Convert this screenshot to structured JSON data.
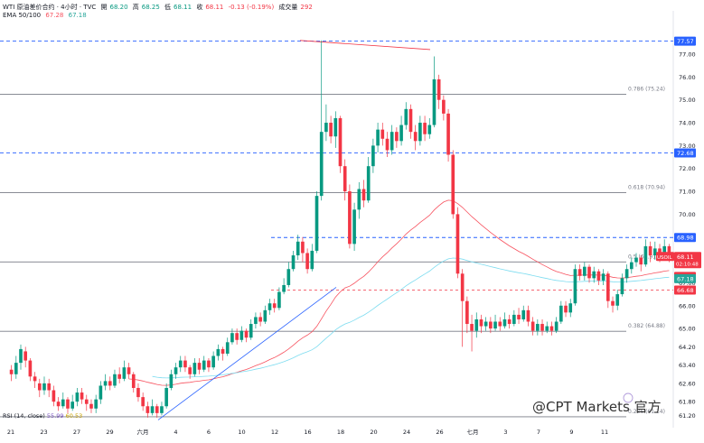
{
  "header": {
    "symbol": "WTI 原油差价合约 · 4小时 · TVC",
    "open_label": "開",
    "open": "68.20",
    "high_label": "高",
    "high": "68.25",
    "low_label": "低",
    "low": "68.11",
    "close_label": "收",
    "close": "68.11",
    "change": "-0.13 (-0.19%)",
    "volume_label": "成交量",
    "volume": "292",
    "ema_label": "EMA 50/100",
    "ema50": "67.28",
    "ema100": "67.18",
    "rsi_label": "RSI (14, close)",
    "rsi_a": "55.99",
    "rsi_b": "60.53"
  },
  "watermark": "@CPT Markets 官方",
  "colors": {
    "up": "#089981",
    "down": "#f23645",
    "ema50": "#f7525f",
    "ema100": "#7ddcf0",
    "trend": "#2962ff",
    "dash": "#2962ff",
    "fib": "#787b86"
  },
  "chart_data": {
    "type": "candlestick",
    "ylim": [
      60.9,
      78.5
    ],
    "yticks": [
      "77.00",
      "76.00",
      "75.00",
      "74.00",
      "73.00",
      "72.00",
      "71.00",
      "70.00",
      "69.00",
      "68.00",
      "67.00",
      "66.00",
      "65.00",
      "64.20",
      "63.40",
      "62.60",
      "61.80",
      "61.20"
    ],
    "ytick_values": [
      77,
      76,
      75,
      74,
      73,
      72,
      71,
      70,
      69,
      68,
      67,
      66,
      65,
      64.2,
      63.4,
      62.6,
      61.8,
      61.2
    ],
    "xticks": [
      "21",
      "23",
      "27",
      "29",
      "六月",
      "4",
      "6",
      "10",
      "12",
      "16",
      "18",
      "20",
      "24",
      "26",
      "七月",
      "3",
      "7",
      "9",
      "11"
    ],
    "fib_levels": [
      {
        "label": "0.786 (75.24)",
        "value": 75.24
      },
      {
        "label": "0.618 (70.94)",
        "value": 70.94
      },
      {
        "label": "0.5 (67.91)",
        "value": 67.91
      },
      {
        "label": "0.382 (64.88)",
        "value": 64.88
      },
      {
        "label": "0.236 (61.14)",
        "value": 61.14
      }
    ],
    "dashed_levels": [
      {
        "value": 77.57,
        "label": "77.57"
      },
      {
        "value": 72.68,
        "label": "72.68"
      },
      {
        "value": 68.98,
        "label": "68.98"
      }
    ],
    "price_badges": [
      {
        "label": "USOIL",
        "value": "68.11",
        "sub": "02:10:48",
        "color": "#f23645"
      },
      {
        "label": "",
        "value": "67.28",
        "color": "#f23645"
      },
      {
        "label": "",
        "value": "67.18",
        "color": "#26a69a"
      },
      {
        "label": "",
        "value": "66.68",
        "color": "#f23645"
      }
    ],
    "red_dashed": 66.68,
    "candles": [
      [
        63.2,
        63.0,
        63.4,
        62.7
      ],
      [
        63.0,
        63.5,
        63.8,
        62.8
      ],
      [
        63.5,
        64.1,
        64.3,
        63.2
      ],
      [
        64.0,
        63.6,
        64.2,
        63.3
      ],
      [
        63.6,
        62.9,
        63.7,
        62.7
      ],
      [
        62.9,
        62.7,
        63.1,
        62.4
      ],
      [
        62.6,
        62.3,
        62.8,
        62.0
      ],
      [
        62.3,
        62.6,
        62.9,
        62.1
      ],
      [
        62.6,
        62.3,
        62.8,
        62.0
      ],
      [
        62.3,
        61.8,
        62.5,
        61.6
      ],
      [
        61.8,
        61.6,
        62.0,
        61.4
      ],
      [
        61.6,
        61.9,
        62.2,
        61.5
      ],
      [
        61.9,
        61.5,
        62.0,
        61.3
      ],
      [
        61.5,
        61.8,
        62.1,
        61.4
      ],
      [
        61.8,
        62.2,
        62.4,
        61.6
      ],
      [
        62.2,
        61.9,
        62.4,
        61.7
      ],
      [
        61.9,
        61.7,
        62.1,
        61.4
      ],
      [
        61.7,
        61.5,
        61.9,
        61.3
      ],
      [
        61.5,
        61.9,
        62.1,
        61.3
      ],
      [
        61.9,
        62.5,
        62.7,
        61.7
      ],
      [
        62.5,
        62.7,
        63.0,
        62.3
      ],
      [
        62.7,
        62.5,
        62.9,
        62.3
      ],
      [
        62.5,
        63.0,
        63.2,
        62.4
      ],
      [
        63.0,
        62.8,
        63.3,
        62.6
      ],
      [
        62.8,
        63.3,
        63.6,
        62.7
      ],
      [
        63.3,
        63.0,
        63.5,
        62.8
      ],
      [
        63.0,
        62.4,
        63.1,
        62.2
      ],
      [
        62.4,
        62.0,
        62.6,
        61.8
      ],
      [
        62.0,
        61.6,
        62.2,
        61.4
      ],
      [
        61.6,
        61.3,
        61.8,
        61.1
      ],
      [
        61.3,
        61.6,
        61.9,
        61.2
      ],
      [
        61.6,
        61.3,
        61.7,
        61.1
      ],
      [
        61.3,
        61.6,
        61.8,
        61.2
      ],
      [
        61.6,
        62.4,
        62.6,
        61.5
      ],
      [
        62.4,
        63.0,
        63.2,
        62.3
      ],
      [
        63.0,
        63.3,
        63.5,
        62.8
      ],
      [
        63.3,
        63.6,
        63.8,
        63.1
      ],
      [
        63.6,
        63.3,
        63.8,
        63.1
      ],
      [
        63.3,
        63.0,
        63.4,
        62.8
      ],
      [
        63.0,
        63.5,
        63.7,
        62.9
      ],
      [
        63.5,
        63.2,
        63.7,
        63.0
      ],
      [
        63.2,
        63.6,
        63.8,
        63.1
      ],
      [
        63.6,
        63.3,
        63.7,
        63.1
      ],
      [
        63.3,
        63.8,
        64.0,
        63.2
      ],
      [
        63.8,
        64.1,
        64.3,
        63.6
      ],
      [
        64.1,
        63.9,
        64.2,
        63.6
      ],
      [
        63.9,
        64.4,
        64.6,
        63.8
      ],
      [
        64.4,
        64.8,
        65.0,
        64.3
      ],
      [
        64.8,
        64.5,
        65.0,
        64.3
      ],
      [
        64.5,
        64.9,
        65.1,
        64.4
      ],
      [
        64.9,
        64.6,
        65.0,
        64.4
      ],
      [
        64.6,
        65.2,
        65.4,
        64.5
      ],
      [
        65.2,
        65.5,
        65.7,
        65.0
      ],
      [
        65.5,
        65.3,
        65.7,
        65.1
      ],
      [
        65.3,
        65.8,
        66.0,
        65.2
      ],
      [
        65.8,
        66.1,
        66.3,
        65.6
      ],
      [
        66.1,
        65.9,
        66.3,
        65.7
      ],
      [
        65.9,
        66.6,
        66.8,
        65.8
      ],
      [
        66.6,
        66.9,
        67.2,
        66.5
      ],
      [
        66.9,
        67.6,
        67.9,
        66.8
      ],
      [
        67.6,
        68.2,
        68.4,
        67.5
      ],
      [
        68.2,
        68.8,
        69.1,
        68.0
      ],
      [
        68.8,
        68.3,
        69.0,
        67.9
      ],
      [
        68.3,
        67.6,
        68.5,
        67.4
      ],
      [
        67.6,
        68.4,
        68.7,
        67.5
      ],
      [
        68.4,
        70.8,
        71.0,
        68.3
      ],
      [
        70.8,
        73.6,
        77.6,
        70.6
      ],
      [
        73.6,
        74.0,
        74.8,
        73.2
      ],
      [
        74.0,
        73.4,
        74.3,
        73.1
      ],
      [
        73.4,
        74.2,
        74.5,
        72.9
      ],
      [
        74.2,
        72.1,
        74.3,
        71.8
      ],
      [
        72.1,
        71.0,
        72.4,
        70.6
      ],
      [
        71.0,
        68.7,
        71.3,
        68.5
      ],
      [
        68.7,
        70.2,
        70.5,
        68.4
      ],
      [
        70.2,
        71.1,
        71.4,
        69.8
      ],
      [
        71.1,
        70.6,
        71.5,
        70.3
      ],
      [
        70.6,
        72.1,
        72.5,
        70.5
      ],
      [
        72.1,
        73.0,
        73.3,
        71.8
      ],
      [
        73.0,
        73.7,
        74.0,
        72.7
      ],
      [
        73.7,
        73.3,
        74.0,
        73.0
      ],
      [
        73.3,
        72.8,
        73.6,
        72.5
      ],
      [
        72.8,
        73.6,
        73.9,
        72.6
      ],
      [
        73.6,
        73.2,
        73.8,
        72.9
      ],
      [
        73.2,
        73.9,
        74.3,
        73.0
      ],
      [
        73.9,
        74.6,
        74.9,
        73.7
      ],
      [
        74.6,
        73.6,
        74.8,
        73.3
      ],
      [
        73.6,
        73.2,
        73.9,
        72.8
      ],
      [
        73.2,
        74.0,
        74.3,
        73.0
      ],
      [
        74.0,
        73.5,
        74.3,
        73.2
      ],
      [
        73.5,
        73.9,
        74.2,
        73.3
      ],
      [
        73.9,
        75.9,
        76.9,
        73.8
      ],
      [
        75.9,
        75.0,
        76.1,
        74.6
      ],
      [
        75.0,
        74.4,
        75.2,
        74.1
      ],
      [
        74.4,
        72.6,
        74.6,
        72.3
      ],
      [
        72.6,
        70.0,
        72.8,
        69.8
      ],
      [
        70.0,
        67.4,
        70.3,
        67.2
      ],
      [
        67.4,
        66.2,
        67.6,
        64.2
      ],
      [
        66.2,
        65.2,
        66.4,
        64.8
      ],
      [
        65.2,
        64.9,
        65.6,
        64.0
      ],
      [
        64.9,
        65.4,
        65.7,
        64.6
      ],
      [
        65.4,
        65.1,
        65.6,
        64.8
      ],
      [
        65.1,
        65.3,
        65.5,
        64.9
      ],
      [
        65.3,
        65.0,
        65.5,
        64.8
      ],
      [
        65.0,
        65.3,
        65.6,
        64.9
      ],
      [
        65.3,
        65.1,
        65.5,
        64.9
      ],
      [
        65.1,
        65.4,
        65.7,
        65.0
      ],
      [
        65.4,
        65.2,
        65.6,
        65.0
      ],
      [
        65.2,
        65.6,
        65.8,
        65.1
      ],
      [
        65.6,
        65.4,
        65.9,
        65.2
      ],
      [
        65.4,
        65.8,
        66.0,
        65.3
      ],
      [
        65.8,
        65.3,
        66.0,
        65.1
      ],
      [
        65.3,
        64.9,
        65.5,
        64.7
      ],
      [
        64.9,
        65.2,
        65.4,
        64.7
      ],
      [
        65.2,
        64.9,
        65.4,
        64.7
      ],
      [
        64.9,
        65.1,
        65.3,
        64.8
      ],
      [
        65.1,
        64.9,
        65.3,
        64.7
      ],
      [
        64.9,
        65.3,
        65.5,
        64.8
      ],
      [
        65.3,
        66.0,
        66.2,
        65.2
      ],
      [
        66.0,
        65.7,
        66.2,
        65.5
      ],
      [
        65.7,
        66.1,
        66.3,
        65.5
      ],
      [
        66.1,
        67.6,
        67.8,
        66.0
      ],
      [
        67.6,
        67.3,
        67.8,
        67.1
      ],
      [
        67.3,
        67.7,
        67.9,
        67.1
      ],
      [
        67.7,
        67.2,
        67.8,
        67.0
      ],
      [
        67.2,
        67.5,
        67.7,
        67.0
      ],
      [
        67.5,
        67.1,
        67.6,
        66.9
      ],
      [
        67.1,
        67.4,
        67.6,
        66.9
      ],
      [
        67.4,
        66.2,
        67.5,
        65.9
      ],
      [
        66.2,
        66.0,
        66.4,
        65.7
      ],
      [
        66.0,
        66.5,
        66.7,
        65.8
      ],
      [
        66.5,
        67.2,
        67.4,
        66.4
      ],
      [
        67.2,
        67.6,
        67.8,
        67.0
      ],
      [
        67.6,
        67.9,
        68.1,
        67.4
      ],
      [
        67.9,
        68.1,
        68.3,
        67.7
      ],
      [
        68.1,
        67.8,
        68.2,
        67.5
      ],
      [
        67.8,
        68.6,
        68.9,
        67.7
      ],
      [
        68.6,
        68.2,
        68.8,
        67.9
      ],
      [
        68.2,
        68.5,
        68.8,
        68.0
      ],
      [
        68.5,
        68.2,
        68.7,
        67.9
      ],
      [
        68.2,
        68.6,
        68.9,
        68.0
      ],
      [
        68.6,
        68.11,
        68.7,
        67.9
      ]
    ]
  }
}
